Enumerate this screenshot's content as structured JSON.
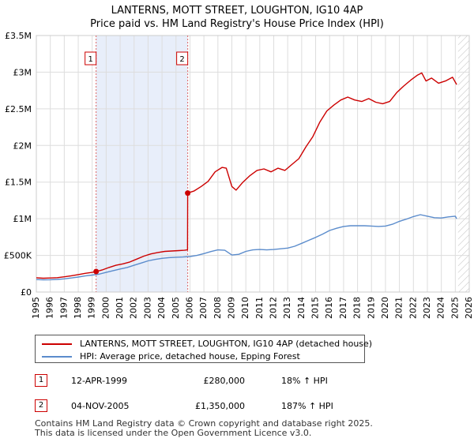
{
  "chart_data": {
    "type": "line",
    "title": "LANTERNS, MOTT STREET, LOUGHTON, IG10 4AP",
    "subtitle": "Price paid vs. HM Land Registry's House Price Index (HPI)",
    "xlabel": "",
    "ylabel": "",
    "xlim": [
      1995,
      2026
    ],
    "ylim": [
      0,
      3500000
    ],
    "x_ticks": [
      "1995",
      "1996",
      "1997",
      "1998",
      "1999",
      "2000",
      "2001",
      "2002",
      "2003",
      "2004",
      "2005",
      "2006",
      "2007",
      "2008",
      "2009",
      "2010",
      "2011",
      "2012",
      "2013",
      "2014",
      "2015",
      "2016",
      "2017",
      "2018",
      "2019",
      "2020",
      "2021",
      "2022",
      "2023",
      "2024",
      "2025",
      "2026"
    ],
    "y_ticks": [
      {
        "value": 0,
        "label": "£0"
      },
      {
        "value": 500000,
        "label": "£500K"
      },
      {
        "value": 1000000,
        "label": "£1M"
      },
      {
        "value": 1500000,
        "label": "£1.5M"
      },
      {
        "value": 2000000,
        "label": "£2M"
      },
      {
        "value": 2500000,
        "label": "£2.5M"
      },
      {
        "value": 3000000,
        "label": "£3M"
      },
      {
        "value": 3500000,
        "label": "£3.5M"
      }
    ],
    "grid": true,
    "series": [
      {
        "name": "LANTERNS, MOTT STREET, LOUGHTON, IG10 4AP (detached house)",
        "color": "#cc0000",
        "points": [
          [
            1995.0,
            195000
          ],
          [
            1995.5,
            188000
          ],
          [
            1996.0,
            192000
          ],
          [
            1996.5,
            196000
          ],
          [
            1997.0,
            208000
          ],
          [
            1997.5,
            222000
          ],
          [
            1998.0,
            238000
          ],
          [
            1998.5,
            255000
          ],
          [
            1999.0,
            268000
          ],
          [
            1999.28,
            280000
          ],
          [
            1999.7,
            300000
          ],
          [
            2000.2,
            335000
          ],
          [
            2000.7,
            365000
          ],
          [
            2001.2,
            385000
          ],
          [
            2001.7,
            410000
          ],
          [
            2002.2,
            450000
          ],
          [
            2002.7,
            490000
          ],
          [
            2003.2,
            520000
          ],
          [
            2003.7,
            540000
          ],
          [
            2004.2,
            555000
          ],
          [
            2004.7,
            560000
          ],
          [
            2005.2,
            565000
          ],
          [
            2005.6,
            570000
          ],
          [
            2005.83,
            575000
          ],
          [
            2005.84,
            1350000
          ],
          [
            2006.3,
            1380000
          ],
          [
            2006.8,
            1440000
          ],
          [
            2007.3,
            1510000
          ],
          [
            2007.8,
            1640000
          ],
          [
            2008.3,
            1700000
          ],
          [
            2008.6,
            1690000
          ],
          [
            2009.0,
            1440000
          ],
          [
            2009.3,
            1390000
          ],
          [
            2009.8,
            1500000
          ],
          [
            2010.3,
            1590000
          ],
          [
            2010.8,
            1660000
          ],
          [
            2011.3,
            1680000
          ],
          [
            2011.8,
            1640000
          ],
          [
            2012.3,
            1690000
          ],
          [
            2012.8,
            1660000
          ],
          [
            2013.3,
            1740000
          ],
          [
            2013.8,
            1820000
          ],
          [
            2014.3,
            1980000
          ],
          [
            2014.8,
            2120000
          ],
          [
            2015.3,
            2320000
          ],
          [
            2015.8,
            2470000
          ],
          [
            2016.3,
            2550000
          ],
          [
            2016.8,
            2620000
          ],
          [
            2017.3,
            2660000
          ],
          [
            2017.8,
            2620000
          ],
          [
            2018.3,
            2600000
          ],
          [
            2018.8,
            2640000
          ],
          [
            2019.3,
            2590000
          ],
          [
            2019.8,
            2570000
          ],
          [
            2020.3,
            2600000
          ],
          [
            2020.8,
            2720000
          ],
          [
            2021.3,
            2810000
          ],
          [
            2021.8,
            2890000
          ],
          [
            2022.3,
            2960000
          ],
          [
            2022.6,
            2990000
          ],
          [
            2022.9,
            2880000
          ],
          [
            2023.3,
            2920000
          ],
          [
            2023.8,
            2850000
          ],
          [
            2024.3,
            2880000
          ],
          [
            2024.8,
            2930000
          ],
          [
            2025.1,
            2830000
          ]
        ]
      },
      {
        "name": "HPI: Average price, detached house, Epping Forest",
        "color": "#5b8ccc",
        "points": [
          [
            1995.0,
            170000
          ],
          [
            1995.5,
            166000
          ],
          [
            1996.0,
            168000
          ],
          [
            1996.5,
            172000
          ],
          [
            1997.0,
            180000
          ],
          [
            1997.5,
            192000
          ],
          [
            1998.0,
            205000
          ],
          [
            1998.5,
            220000
          ],
          [
            1999.0,
            232000
          ],
          [
            1999.5,
            245000
          ],
          [
            2000.0,
            268000
          ],
          [
            2000.5,
            292000
          ],
          [
            2001.0,
            315000
          ],
          [
            2001.5,
            335000
          ],
          [
            2002.0,
            365000
          ],
          [
            2002.5,
            395000
          ],
          [
            2003.0,
            425000
          ],
          [
            2003.5,
            445000
          ],
          [
            2004.0,
            460000
          ],
          [
            2004.5,
            470000
          ],
          [
            2005.0,
            475000
          ],
          [
            2005.5,
            478000
          ],
          [
            2006.0,
            485000
          ],
          [
            2006.5,
            500000
          ],
          [
            2007.0,
            525000
          ],
          [
            2007.5,
            552000
          ],
          [
            2008.0,
            575000
          ],
          [
            2008.5,
            570000
          ],
          [
            2009.0,
            505000
          ],
          [
            2009.5,
            515000
          ],
          [
            2010.0,
            555000
          ],
          [
            2010.5,
            575000
          ],
          [
            2011.0,
            580000
          ],
          [
            2011.5,
            575000
          ],
          [
            2012.0,
            580000
          ],
          [
            2012.5,
            590000
          ],
          [
            2013.0,
            600000
          ],
          [
            2013.5,
            625000
          ],
          [
            2014.0,
            665000
          ],
          [
            2014.5,
            705000
          ],
          [
            2015.0,
            745000
          ],
          [
            2015.5,
            790000
          ],
          [
            2016.0,
            840000
          ],
          [
            2016.5,
            870000
          ],
          [
            2017.0,
            895000
          ],
          [
            2017.5,
            905000
          ],
          [
            2018.0,
            905000
          ],
          [
            2018.5,
            905000
          ],
          [
            2019.0,
            900000
          ],
          [
            2019.5,
            895000
          ],
          [
            2020.0,
            900000
          ],
          [
            2020.5,
            925000
          ],
          [
            2021.0,
            965000
          ],
          [
            2021.5,
            995000
          ],
          [
            2022.0,
            1030000
          ],
          [
            2022.5,
            1055000
          ],
          [
            2023.0,
            1035000
          ],
          [
            2023.5,
            1015000
          ],
          [
            2024.0,
            1010000
          ],
          [
            2024.5,
            1025000
          ],
          [
            2025.0,
            1035000
          ],
          [
            2025.1,
            1000000
          ]
        ]
      }
    ],
    "sales": [
      {
        "id": "1",
        "x": 1999.28,
        "price": 280000,
        "date": "12-APR-1999",
        "price_label": "£280,000",
        "hpi_label": "18% ↑ HPI"
      },
      {
        "id": "2",
        "x": 2005.84,
        "price": 1350000,
        "date": "04-NOV-2005",
        "price_label": "£1,350,000",
        "hpi_label": "187% ↑ HPI"
      }
    ],
    "shaded_range": [
      1999.28,
      2005.84
    ],
    "hatched_from": 2025.2
  },
  "legend": {
    "property_label": "LANTERNS, MOTT STREET, LOUGHTON, IG10 4AP (detached house)",
    "hpi_label": "HPI: Average price, detached house, Epping Forest"
  },
  "footer": {
    "line1": "Contains HM Land Registry data © Crown copyright and database right 2025.",
    "line2": "This data is licensed under the Open Government Licence v3.0."
  },
  "colors": {
    "property": "#cc0000",
    "hpi": "#5b8ccc",
    "shade": "#e8eefa",
    "grid": "#dddddd"
  }
}
